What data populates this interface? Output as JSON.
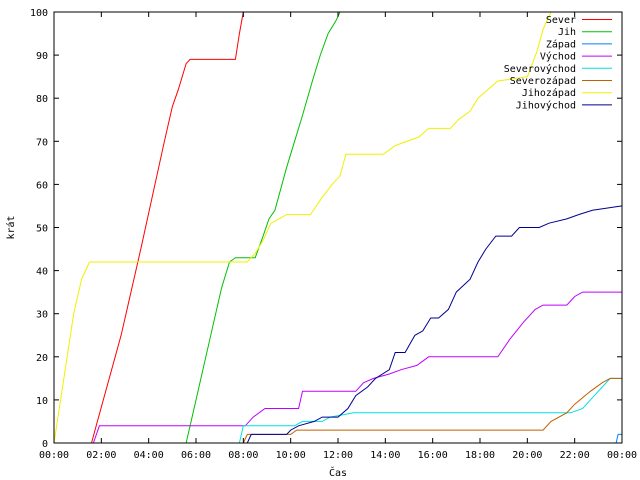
{
  "chart_data": {
    "type": "line",
    "title": "",
    "xlabel": "Čas",
    "ylabel": "krát",
    "xlim": [
      "00:00",
      "24:00"
    ],
    "ylim": [
      0,
      100
    ],
    "x_ticks": [
      "00:00",
      "02:00",
      "04:00",
      "06:00",
      "08:00",
      "10:00",
      "12:00",
      "14:00",
      "16:00",
      "18:00",
      "20:00",
      "22:00",
      "00:00"
    ],
    "y_ticks": [
      0,
      10,
      20,
      30,
      40,
      50,
      60,
      70,
      80,
      90,
      100
    ],
    "grid": false,
    "legend_position": "top-right",
    "series": [
      {
        "name": "Sever",
        "color": "#ff0000",
        "points": [
          [
            "01:35",
            0
          ],
          [
            "01:50",
            5
          ],
          [
            "02:50",
            25
          ],
          [
            "03:40",
            45
          ],
          [
            "04:40",
            70
          ],
          [
            "05:00",
            78
          ],
          [
            "05:15",
            82
          ],
          [
            "05:35",
            88
          ],
          [
            "05:45",
            89
          ],
          [
            "07:40",
            89
          ],
          [
            "07:50",
            95
          ],
          [
            "08:00",
            100
          ]
        ]
      },
      {
        "name": "Jih",
        "color": "#00c000",
        "points": [
          [
            "05:35",
            0
          ],
          [
            "05:50",
            6
          ],
          [
            "06:30",
            22
          ],
          [
            "07:05",
            36
          ],
          [
            "07:25",
            42
          ],
          [
            "07:40",
            43
          ],
          [
            "08:30",
            43
          ],
          [
            "08:50",
            48
          ],
          [
            "09:05",
            52
          ],
          [
            "09:20",
            54
          ],
          [
            "09:35",
            59
          ],
          [
            "09:50",
            64
          ],
          [
            "10:10",
            70
          ],
          [
            "10:30",
            76
          ],
          [
            "10:55",
            84
          ],
          [
            "11:15",
            90
          ],
          [
            "11:35",
            95
          ],
          [
            "11:55",
            98
          ],
          [
            "12:05",
            100
          ]
        ]
      },
      {
        "name": "Západ",
        "color": "#0080ff",
        "points": [
          [
            "23:45",
            0
          ],
          [
            "23:50",
            2
          ],
          [
            "24:00",
            2
          ]
        ]
      },
      {
        "name": "Východ",
        "color": "#c000ff",
        "points": [
          [
            "01:40",
            0
          ],
          [
            "01:55",
            4
          ],
          [
            "08:05",
            4
          ],
          [
            "08:25",
            6
          ],
          [
            "08:55",
            8
          ],
          [
            "10:20",
            8
          ],
          [
            "10:30",
            12
          ],
          [
            "12:45",
            12
          ],
          [
            "13:05",
            14
          ],
          [
            "13:30",
            15
          ],
          [
            "14:10",
            16
          ],
          [
            "14:40",
            17
          ],
          [
            "15:20",
            18
          ],
          [
            "15:50",
            20
          ],
          [
            "18:45",
            20
          ],
          [
            "19:15",
            24
          ],
          [
            "19:50",
            28
          ],
          [
            "20:20",
            31
          ],
          [
            "20:40",
            32
          ],
          [
            "21:40",
            32
          ],
          [
            "22:00",
            34
          ],
          [
            "22:20",
            35
          ],
          [
            "24:00",
            35
          ]
        ]
      },
      {
        "name": "Severovýchod",
        "color": "#00e0e0",
        "points": [
          [
            "07:50",
            0
          ],
          [
            "08:00",
            4
          ],
          [
            "10:10",
            4
          ],
          [
            "10:30",
            5
          ],
          [
            "11:20",
            5
          ],
          [
            "11:40",
            6
          ],
          [
            "12:40",
            7
          ],
          [
            "21:50",
            7
          ],
          [
            "22:20",
            8
          ],
          [
            "22:50",
            11
          ],
          [
            "23:10",
            13
          ],
          [
            "23:30",
            15
          ],
          [
            "24:00",
            15
          ]
        ]
      },
      {
        "name": "Severozápad",
        "color": "#c06000",
        "points": [
          [
            "08:00",
            0
          ],
          [
            "08:10",
            2
          ],
          [
            "10:00",
            2
          ],
          [
            "10:15",
            3
          ],
          [
            "20:40",
            3
          ],
          [
            "21:00",
            5
          ],
          [
            "21:40",
            7
          ],
          [
            "22:00",
            9
          ],
          [
            "22:40",
            12
          ],
          [
            "23:10",
            14
          ],
          [
            "23:30",
            15
          ],
          [
            "24:00",
            15
          ]
        ]
      },
      {
        "name": "Jihozápad",
        "color": "#f0f000",
        "points": [
          [
            "00:00",
            0
          ],
          [
            "00:20",
            12
          ],
          [
            "00:50",
            30
          ],
          [
            "01:10",
            38
          ],
          [
            "01:30",
            42
          ],
          [
            "08:10",
            42
          ],
          [
            "08:30",
            44
          ],
          [
            "08:50",
            47
          ],
          [
            "09:10",
            51
          ],
          [
            "09:30",
            52
          ],
          [
            "09:50",
            53
          ],
          [
            "10:50",
            53
          ],
          [
            "11:20",
            57
          ],
          [
            "11:45",
            60
          ],
          [
            "12:05",
            62
          ],
          [
            "12:20",
            67
          ],
          [
            "13:55",
            67
          ],
          [
            "14:25",
            69
          ],
          [
            "15:25",
            71
          ],
          [
            "15:50",
            73
          ],
          [
            "16:45",
            73
          ],
          [
            "17:05",
            75
          ],
          [
            "17:35",
            77
          ],
          [
            "17:55",
            80
          ],
          [
            "18:20",
            82
          ],
          [
            "18:45",
            84
          ],
          [
            "20:00",
            85
          ],
          [
            "20:25",
            91
          ],
          [
            "20:40",
            96
          ],
          [
            "21:00",
            100
          ]
        ]
      },
      {
        "name": "Jihovýchod",
        "color": "#000090",
        "points": [
          [
            "08:10",
            0
          ],
          [
            "08:20",
            2
          ],
          [
            "09:50",
            2
          ],
          [
            "10:00",
            3
          ],
          [
            "10:20",
            4
          ],
          [
            "11:00",
            5
          ],
          [
            "11:20",
            6
          ],
          [
            "12:00",
            6
          ],
          [
            "12:25",
            8
          ],
          [
            "12:45",
            11
          ],
          [
            "13:15",
            13
          ],
          [
            "13:35",
            15
          ],
          [
            "14:10",
            17
          ],
          [
            "14:25",
            21
          ],
          [
            "14:50",
            21
          ],
          [
            "15:15",
            25
          ],
          [
            "15:35",
            26
          ],
          [
            "15:55",
            29
          ],
          [
            "16:15",
            29
          ],
          [
            "16:40",
            31
          ],
          [
            "17:00",
            35
          ],
          [
            "17:35",
            38
          ],
          [
            "17:55",
            42
          ],
          [
            "18:15",
            45
          ],
          [
            "18:40",
            48
          ],
          [
            "19:20",
            48
          ],
          [
            "19:40",
            50
          ],
          [
            "20:30",
            50
          ],
          [
            "20:55",
            51
          ],
          [
            "21:40",
            52
          ],
          [
            "22:10",
            53
          ],
          [
            "22:45",
            54
          ],
          [
            "24:00",
            55
          ]
        ]
      }
    ]
  }
}
